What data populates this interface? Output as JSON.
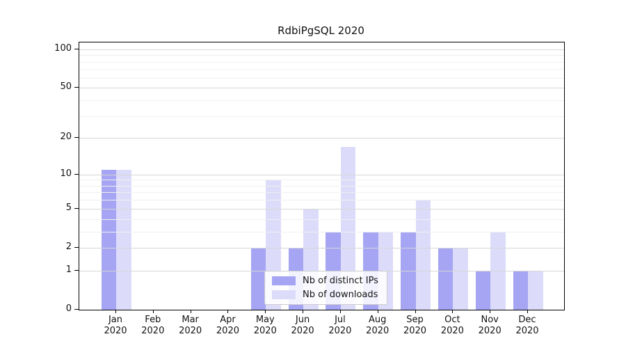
{
  "chart_data": {
    "type": "bar",
    "title": "RdbiPgSQL 2020",
    "x_year": "2020",
    "categories": [
      "Jan",
      "Feb",
      "Mar",
      "Apr",
      "May",
      "Jun",
      "Jul",
      "Aug",
      "Sep",
      "Oct",
      "Nov",
      "Dec"
    ],
    "series": [
      {
        "name": "Nb of distinct IPs",
        "color": "#a5a5f3",
        "values": [
          11,
          0,
          0,
          0,
          2,
          2,
          3,
          3,
          3,
          2,
          1,
          1
        ]
      },
      {
        "name": "Nb of downloads",
        "color": "#dcdcfa",
        "values": [
          11,
          0,
          0,
          0,
          9,
          5,
          17,
          3,
          6,
          2,
          3,
          1
        ]
      }
    ],
    "y_scale": "log10(1+x)",
    "y_ticks": [
      0,
      1,
      2,
      5,
      10,
      20,
      50,
      100
    ],
    "y_minor_ticks": [
      3,
      4,
      6,
      7,
      8,
      9,
      30,
      40,
      60,
      70,
      80,
      90
    ],
    "ylim": [
      0,
      113
    ],
    "grid": "horizontal",
    "legend_position": "inside-bottom-center",
    "colors": {
      "axis": "#000000",
      "grid_major": "#d6d6d6",
      "grid_minor": "#f0f0f0",
      "legend_border": "#cccccc"
    }
  }
}
